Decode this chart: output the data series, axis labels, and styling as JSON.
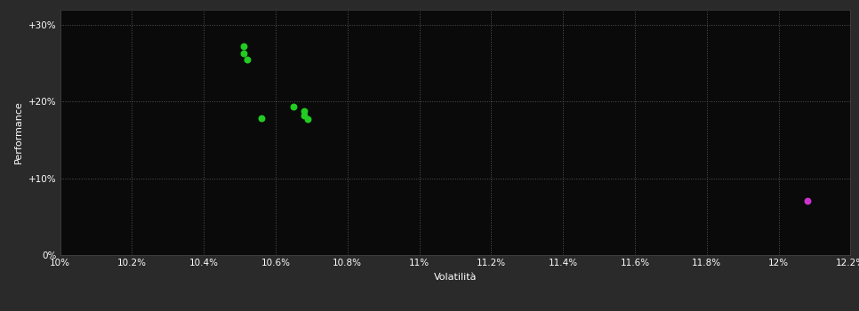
{
  "background_color": "#2a2a2a",
  "plot_bg_color": "#0a0a0a",
  "grid_color": "#666666",
  "text_color": "#ffffff",
  "xlabel": "Volatilità",
  "ylabel": "Performance",
  "xlim": [
    0.1,
    0.122
  ],
  "ylim": [
    0.0,
    0.32
  ],
  "xticks": [
    0.1,
    0.102,
    0.104,
    0.106,
    0.108,
    0.11,
    0.112,
    0.114,
    0.116,
    0.118,
    0.12,
    0.122
  ],
  "yticks": [
    0.0,
    0.1,
    0.2,
    0.3
  ],
  "ytick_labels": [
    "0%",
    "+10%",
    "+20%",
    "+30%"
  ],
  "xtick_labels": [
    "10%",
    "10.2%",
    "10.4%",
    "10.6%",
    "10.8%",
    "11%",
    "11.2%",
    "11.4%",
    "11.6%",
    "11.8%",
    "12%",
    "12.2%"
  ],
  "green_points": [
    [
      0.1051,
      0.272
    ],
    [
      0.1051,
      0.263
    ],
    [
      0.1052,
      0.255
    ],
    [
      0.1065,
      0.193
    ],
    [
      0.1068,
      0.187
    ],
    [
      0.1068,
      0.182
    ],
    [
      0.1069,
      0.177
    ],
    [
      0.1056,
      0.178
    ]
  ],
  "green_color": "#22cc22",
  "pink_point": [
    0.1208,
    0.071
  ],
  "pink_color": "#cc33cc",
  "dot_size": 22
}
